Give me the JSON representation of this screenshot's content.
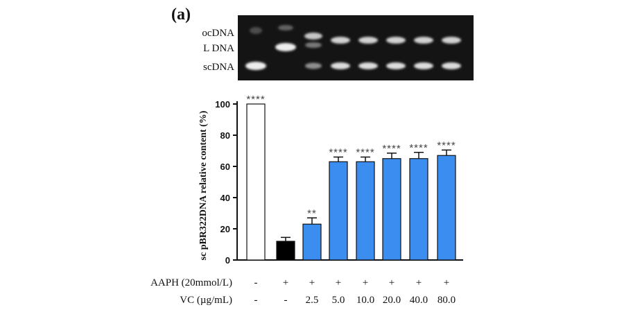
{
  "panel_label": "(a)",
  "gel": {
    "band_labels": [
      "ocDNA",
      "L DNA",
      "scDNA"
    ]
  },
  "chart_data": {
    "type": "bar",
    "ylabel": "sc pBR322DNA relative content  (%)",
    "ylim": [
      0,
      100
    ],
    "yticks": [
      0,
      20,
      40,
      60,
      80,
      100
    ],
    "bars": [
      {
        "value": 100,
        "error": 0,
        "significance": "****",
        "color": "#ffffff"
      },
      {
        "value": 12,
        "error": 2.5,
        "significance": "",
        "color": "#000000"
      },
      {
        "value": 23,
        "error": 4,
        "significance": "**",
        "color": "#3b8ef0"
      },
      {
        "value": 63,
        "error": 3,
        "significance": "****",
        "color": "#3b8ef0"
      },
      {
        "value": 63,
        "error": 3,
        "significance": "****",
        "color": "#3b8ef0"
      },
      {
        "value": 65,
        "error": 3.5,
        "significance": "****",
        "color": "#3b8ef0"
      },
      {
        "value": 65,
        "error": 4,
        "significance": "****",
        "color": "#3b8ef0"
      },
      {
        "value": 67,
        "error": 3.5,
        "significance": "****",
        "color": "#3b8ef0"
      }
    ],
    "conditions": [
      {
        "label": "AAPH  (20mmol/L)",
        "values": [
          "-",
          "+",
          "+",
          "+",
          "+",
          "+",
          "+",
          "+"
        ]
      },
      {
        "label": "VC (µg/mL)",
        "values": [
          "-",
          "-",
          "2.5",
          "5.0",
          "10.0",
          "20.0",
          "40.0",
          "80.0"
        ]
      }
    ]
  }
}
